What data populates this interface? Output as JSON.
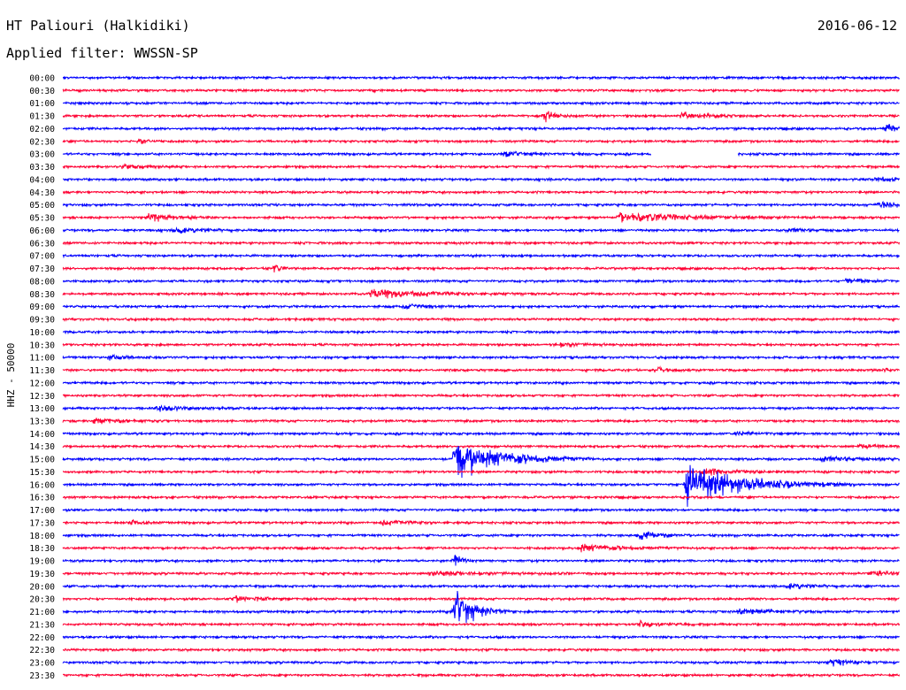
{
  "header": {
    "station": "HT Paliouri (Halkidiki)",
    "date": "2016-06-12",
    "filter": "Applied filter: WWSSN-SP"
  },
  "colors": {
    "even_trace": "#0000ff",
    "odd_trace": "#ff0033",
    "text": "#000000",
    "background": "#ffffff"
  },
  "chart_data": {
    "type": "line",
    "ylabel": "HHZ - 50000",
    "xlabel": "",
    "series_style": "helicorder",
    "grid": false,
    "row_labels": [
      "00:00",
      "00:30",
      "01:00",
      "01:30",
      "02:00",
      "02:30",
      "03:00",
      "03:30",
      "04:00",
      "04:30",
      "05:00",
      "05:30",
      "06:00",
      "06:30",
      "07:00",
      "07:30",
      "08:00",
      "08:30",
      "09:00",
      "09:30",
      "10:00",
      "10:30",
      "11:00",
      "11:30",
      "12:00",
      "12:30",
      "13:00",
      "13:30",
      "14:00",
      "14:30",
      "15:00",
      "15:30",
      "16:00",
      "16:30",
      "17:00",
      "17:30",
      "18:00",
      "18:30",
      "19:00",
      "19:30",
      "20:00",
      "20:30",
      "21:00",
      "21:30",
      "22:00",
      "22:30",
      "23:00",
      "23:30"
    ],
    "row_span_minutes": 30,
    "events": [
      {
        "row": "01:30",
        "minute": 17.3,
        "amplitude": 8,
        "duration": 0.6
      },
      {
        "row": "01:30",
        "minute": 22.2,
        "amplitude": 4,
        "duration": 1.5
      },
      {
        "row": "02:00",
        "minute": 29.6,
        "amplitude": 7,
        "duration": 0.4
      },
      {
        "row": "02:30",
        "minute": 2.8,
        "amplitude": 4,
        "duration": 0.4
      },
      {
        "row": "03:00",
        "minute": 15.9,
        "amplitude": 3,
        "duration": 1.5
      },
      {
        "row": "03:30",
        "minute": 2.2,
        "amplitude": 3,
        "duration": 1.5
      },
      {
        "row": "04:00",
        "minute": 29.2,
        "amplitude": 3,
        "duration": 1.5
      },
      {
        "row": "05:00",
        "minute": 29.3,
        "amplitude": 4,
        "duration": 1.2
      },
      {
        "row": "05:30",
        "minute": 3.1,
        "amplitude": 5,
        "duration": 1.2
      },
      {
        "row": "05:30",
        "minute": 20.0,
        "amplitude": 6,
        "duration": 4.0
      },
      {
        "row": "06:00",
        "minute": 4.1,
        "amplitude": 4,
        "duration": 1.5
      },
      {
        "row": "06:00",
        "minute": 26.1,
        "amplitude": 3,
        "duration": 0.8
      },
      {
        "row": "07:30",
        "minute": 7.6,
        "amplitude": 5,
        "duration": 0.3
      },
      {
        "row": "08:00",
        "minute": 28.1,
        "amplitude": 4,
        "duration": 1.0
      },
      {
        "row": "08:30",
        "minute": 11.1,
        "amplitude": 6,
        "duration": 3.0
      },
      {
        "row": "09:00",
        "minute": 12.3,
        "amplitude": 3,
        "duration": 1.2
      },
      {
        "row": "10:30",
        "minute": 17.7,
        "amplitude": 3,
        "duration": 1.5
      },
      {
        "row": "11:00",
        "minute": 1.7,
        "amplitude": 4,
        "duration": 0.8
      },
      {
        "row": "11:30",
        "minute": 21.3,
        "amplitude": 3,
        "duration": 1.0
      },
      {
        "row": "11:30",
        "minute": 29.5,
        "amplitude": 3,
        "duration": 0.8
      },
      {
        "row": "13:00",
        "minute": 3.4,
        "amplitude": 4,
        "duration": 1.5
      },
      {
        "row": "13:30",
        "minute": 1.2,
        "amplitude": 4,
        "duration": 1.2
      },
      {
        "row": "14:00",
        "minute": 24.1,
        "amplitude": 3,
        "duration": 1.0
      },
      {
        "row": "14:30",
        "minute": 28.6,
        "amplitude": 3,
        "duration": 1.2
      },
      {
        "row": "15:00",
        "minute": 14.1,
        "amplitude": 26,
        "duration": 2.5
      },
      {
        "row": "15:00",
        "minute": 27.3,
        "amplitude": 4,
        "duration": 1.5
      },
      {
        "row": "15:30",
        "minute": 23.0,
        "amplitude": 4,
        "duration": 2.0
      },
      {
        "row": "16:00",
        "minute": 22.4,
        "amplitude": 30,
        "duration": 3.0
      },
      {
        "row": "17:30",
        "minute": 2.5,
        "amplitude": 4,
        "duration": 0.5
      },
      {
        "row": "17:30",
        "minute": 11.5,
        "amplitude": 3,
        "duration": 1.5
      },
      {
        "row": "18:00",
        "minute": 20.7,
        "amplitude": 6,
        "duration": 1.0
      },
      {
        "row": "18:30",
        "minute": 18.6,
        "amplitude": 5,
        "duration": 2.0
      },
      {
        "row": "19:00",
        "minute": 14.1,
        "amplitude": 12,
        "duration": 0.3
      },
      {
        "row": "19:30",
        "minute": 13.2,
        "amplitude": 3,
        "duration": 3.0
      },
      {
        "row": "19:30",
        "minute": 29.0,
        "amplitude": 3,
        "duration": 1.5
      },
      {
        "row": "20:00",
        "minute": 26.1,
        "amplitude": 4,
        "duration": 1.2
      },
      {
        "row": "20:30",
        "minute": 6.2,
        "amplitude": 4,
        "duration": 1.5
      },
      {
        "row": "21:00",
        "minute": 14.1,
        "amplitude": 30,
        "duration": 1.0
      },
      {
        "row": "21:00",
        "minute": 24.3,
        "amplitude": 4,
        "duration": 2.0
      },
      {
        "row": "21:30",
        "minute": 20.7,
        "amplitude": 4,
        "duration": 1.0
      },
      {
        "row": "23:00",
        "minute": 27.6,
        "amplitude": 5,
        "duration": 1.0
      }
    ],
    "gaps": [
      {
        "row": "03:00",
        "start_minute": 21.1,
        "end_minute": 24.2
      }
    ]
  }
}
